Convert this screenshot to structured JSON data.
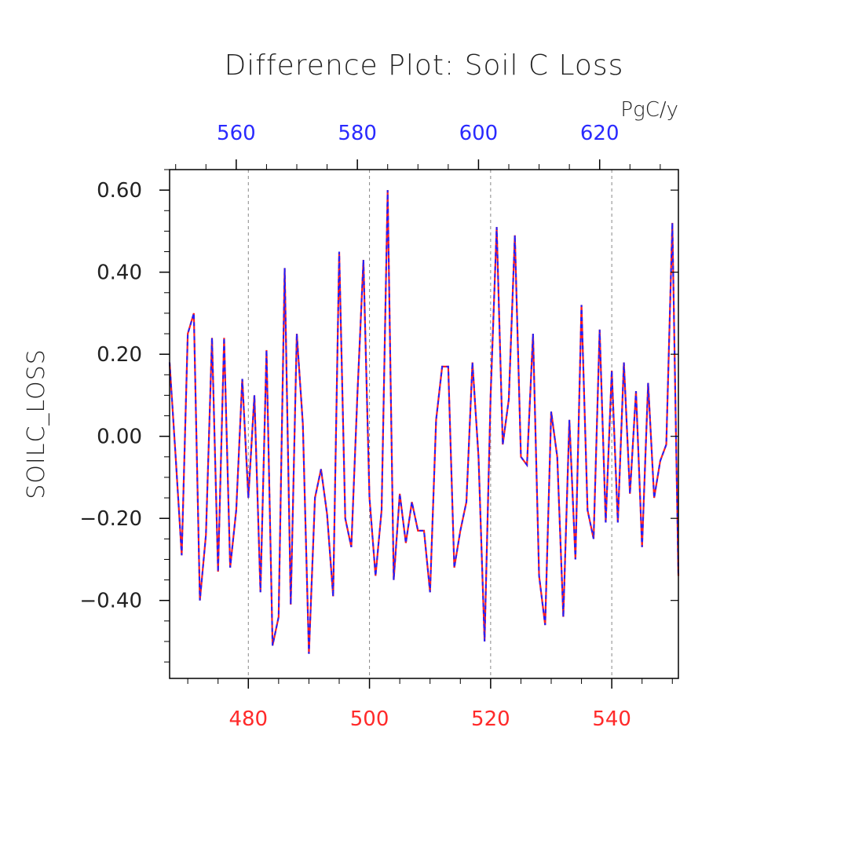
{
  "chart_data": {
    "type": "line",
    "title": "Difference Plot: Soil C Loss",
    "ylabel": "SOILC_LOSS",
    "units": "PgC/y",
    "ylim": [
      -0.59,
      0.65
    ],
    "bottom_xlim": [
      467,
      551
    ],
    "top_xlim": [
      549,
      633
    ],
    "yticks": [
      -0.4,
      -0.2,
      0.0,
      0.2,
      0.4,
      0.6
    ],
    "ytick_labels": [
      "−0.40",
      "−0.20",
      "0.00",
      "0.20",
      "0.40",
      "0.60"
    ],
    "bottom_xticks": [
      480,
      500,
      520,
      540
    ],
    "bottom_xtick_labels": [
      "480",
      "500",
      "520",
      "540"
    ],
    "top_xticks": [
      560,
      580,
      600,
      620
    ],
    "top_xtick_labels": [
      "560",
      "580",
      "600",
      "620"
    ],
    "grid": "vertical dashed at bottom-axis ticks",
    "colors": {
      "bottom_axis": "#ff2a2a",
      "top_axis": "#2a2aff",
      "series_a": "#ff2020",
      "series_b": "#2020ff"
    },
    "x": [
      467,
      468,
      469,
      470,
      471,
      472,
      473,
      474,
      475,
      476,
      477,
      478,
      479,
      480,
      481,
      482,
      483,
      484,
      485,
      486,
      487,
      488,
      489,
      490,
      491,
      492,
      493,
      494,
      495,
      496,
      497,
      498,
      499,
      500,
      501,
      502,
      503,
      504,
      505,
      506,
      507,
      508,
      509,
      510,
      511,
      512,
      513,
      514,
      515,
      516,
      517,
      518,
      519,
      520,
      521,
      522,
      523,
      524,
      525,
      526,
      527,
      528,
      529,
      530,
      531,
      532,
      533,
      534,
      535,
      536,
      537,
      538,
      539,
      540,
      541,
      542,
      543,
      544,
      545,
      546,
      547,
      548,
      549,
      550,
      551
    ],
    "series": [
      {
        "values": [
          0.18,
          -0.05,
          -0.29,
          0.25,
          0.3,
          -0.4,
          -0.24,
          0.24,
          -0.33,
          0.24,
          -0.32,
          -0.18,
          0.14,
          -0.15,
          0.1,
          -0.38,
          0.21,
          -0.51,
          -0.44,
          0.41,
          -0.41,
          0.25,
          0.03,
          -0.53,
          -0.15,
          -0.08,
          -0.19,
          -0.39,
          0.45,
          -0.2,
          -0.27,
          0.1,
          0.43,
          -0.15,
          -0.34,
          -0.18,
          0.6,
          -0.35,
          -0.14,
          -0.26,
          -0.16,
          -0.23,
          -0.23,
          -0.38,
          0.04,
          0.17,
          0.17,
          -0.32,
          -0.23,
          -0.16,
          0.18,
          -0.05,
          -0.5,
          0.1,
          0.51,
          -0.02,
          0.09,
          0.49,
          -0.05,
          -0.07,
          0.25,
          -0.34,
          -0.46,
          0.06,
          -0.05,
          -0.44,
          0.04,
          -0.3,
          0.32,
          -0.18,
          -0.25,
          0.26,
          -0.21,
          0.16,
          -0.21,
          0.18,
          -0.14,
          0.11,
          -0.27,
          0.13,
          -0.15,
          -0.06,
          -0.02,
          0.52,
          -0.34
        ]
      },
      {
        "values": [
          0.18,
          -0.05,
          -0.29,
          0.25,
          0.3,
          -0.4,
          -0.24,
          0.24,
          -0.33,
          0.24,
          -0.32,
          -0.18,
          0.14,
          -0.15,
          0.1,
          -0.38,
          0.21,
          -0.51,
          -0.44,
          0.41,
          -0.41,
          0.25,
          0.03,
          -0.53,
          -0.15,
          -0.08,
          -0.19,
          -0.39,
          0.45,
          -0.2,
          -0.27,
          0.1,
          0.43,
          -0.15,
          -0.34,
          -0.18,
          0.6,
          -0.35,
          -0.14,
          -0.26,
          -0.16,
          -0.23,
          -0.23,
          -0.38,
          0.04,
          0.17,
          0.17,
          -0.32,
          -0.23,
          -0.16,
          0.18,
          -0.05,
          -0.5,
          0.1,
          0.51,
          -0.02,
          0.09,
          0.49,
          -0.05,
          -0.07,
          0.25,
          -0.34,
          -0.46,
          0.06,
          -0.05,
          -0.44,
          0.04,
          -0.3,
          0.32,
          -0.18,
          -0.25,
          0.26,
          -0.21,
          0.16,
          -0.21,
          0.18,
          -0.14,
          0.11,
          -0.27,
          0.13,
          -0.15,
          -0.06,
          -0.02,
          0.52,
          -0.34
        ]
      }
    ]
  }
}
